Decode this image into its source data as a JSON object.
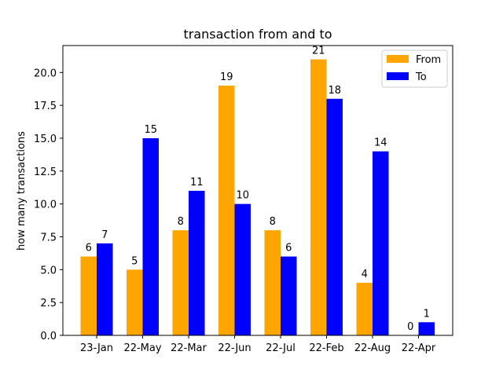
{
  "chart_data": {
    "type": "bar",
    "title": "transaction from and to",
    "xlabel": "",
    "ylabel": "how many transactions",
    "categories": [
      "23-Jan",
      "22-May",
      "22-Mar",
      "22-Jun",
      "22-Jul",
      "22-Feb",
      "22-Aug",
      "22-Apr"
    ],
    "series": [
      {
        "name": "From",
        "color": "#ffa500",
        "values": [
          6,
          5,
          8,
          19,
          8,
          21,
          4,
          0
        ]
      },
      {
        "name": "To",
        "color": "#0000ff",
        "values": [
          7,
          15,
          11,
          10,
          6,
          18,
          14,
          1
        ]
      }
    ],
    "ylim": [
      0,
      22.05
    ],
    "yticks": [
      "0.0",
      "2.5",
      "5.0",
      "7.5",
      "10.0",
      "12.5",
      "15.0",
      "17.5",
      "20.0"
    ],
    "grid": false,
    "legend_position": "top-right"
  }
}
